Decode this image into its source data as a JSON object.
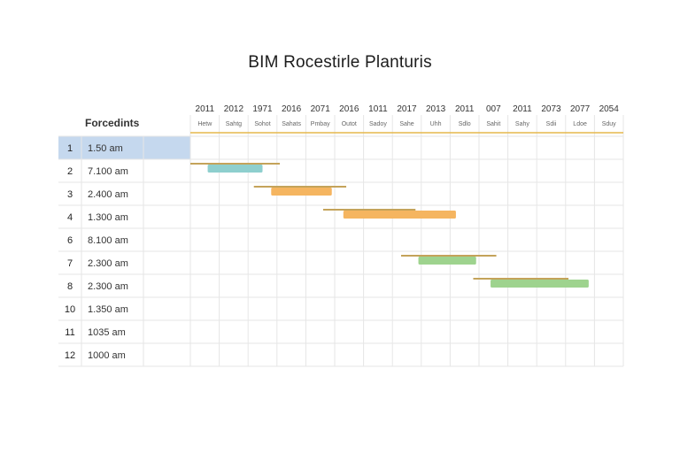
{
  "title": "BIM Rocestirle Planturis",
  "table": {
    "header": "Forcedints",
    "rows": [
      {
        "num": "1",
        "time": "1.50 am",
        "selected": true
      },
      {
        "num": "2",
        "time": "7.100 am"
      },
      {
        "num": "3",
        "time": "2.400 am"
      },
      {
        "num": "4",
        "time": "1.300 am"
      },
      {
        "num": "6",
        "time": "8.100 am"
      },
      {
        "num": "7",
        "time": "2.300 am"
      },
      {
        "num": "8",
        "time": "2.300 am"
      },
      {
        "num": "10",
        "time": "1.350 am"
      },
      {
        "num": "11",
        "time": "1035 am"
      },
      {
        "num": "12",
        "time": "1000 am"
      }
    ]
  },
  "colors": {
    "selected_row": "#c5d8ee",
    "accent_line": "#e6b84c",
    "outline": "#c4a35a",
    "teal": "#8ecfce",
    "orange": "#f5b560",
    "green": "#9ed38e",
    "grid": "#e6e6e6"
  },
  "chart_data": {
    "type": "gantt",
    "title": "BIM Rocestirle Planturis",
    "columns": [
      {
        "year": "2011",
        "sub": "Hetw"
      },
      {
        "year": "2012",
        "sub": "Sahtg"
      },
      {
        "year": "1971",
        "sub": "Sohot"
      },
      {
        "year": "2016",
        "sub": "Sahats"
      },
      {
        "year": "2071",
        "sub": "Pmbay"
      },
      {
        "year": "2016",
        "sub": "Outot"
      },
      {
        "year": "1011",
        "sub": "Sadoy"
      },
      {
        "year": "2017",
        "sub": "Sahe"
      },
      {
        "year": "2013",
        "sub": "Uhh"
      },
      {
        "year": "2011",
        "sub": "Sdlo"
      },
      {
        "year": "007",
        "sub": "Sahit"
      },
      {
        "year": "2011",
        "sub": "Sahy"
      },
      {
        "year": "2073",
        "sub": "Sdii"
      },
      {
        "year": "2077",
        "sub": "Ldoe"
      },
      {
        "year": "2054",
        "sub": "Sduy"
      }
    ],
    "tasks": [
      {
        "row": 1,
        "outline_start": 0.0,
        "outline_end": 3.1,
        "start": 0.6,
        "end": 2.5,
        "color": "teal"
      },
      {
        "row": 2,
        "outline_start": 2.2,
        "outline_end": 5.4,
        "start": 2.8,
        "end": 4.9,
        "color": "orange"
      },
      {
        "row": 3,
        "outline_start": 4.6,
        "outline_end": 7.8,
        "start": 5.3,
        "end": 9.2,
        "color": "orange"
      },
      {
        "row": 5,
        "outline_start": 7.3,
        "outline_end": 10.6,
        "start": 7.9,
        "end": 9.9,
        "color": "green"
      },
      {
        "row": 6,
        "outline_start": 9.8,
        "outline_end": 13.1,
        "start": 10.4,
        "end": 13.8,
        "color": "green"
      }
    ]
  }
}
